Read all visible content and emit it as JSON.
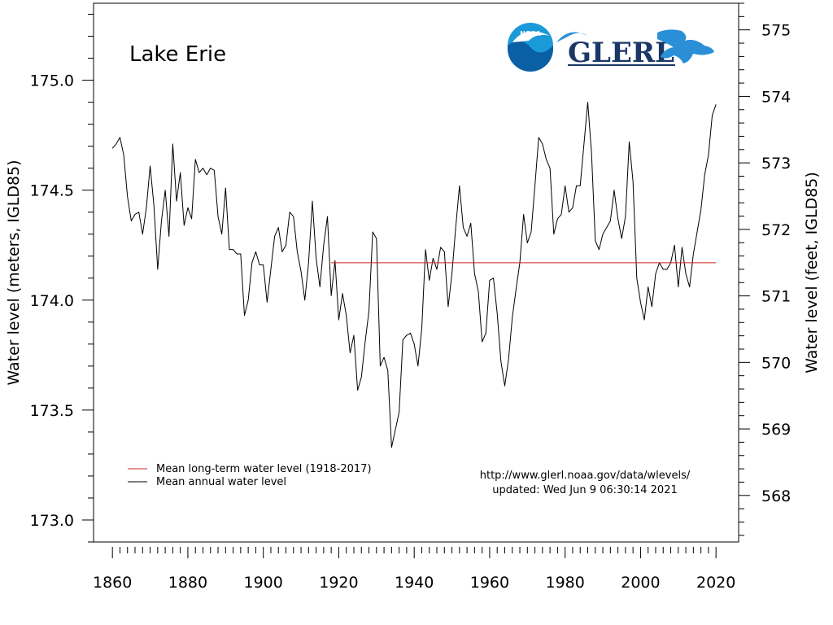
{
  "chart_data": {
    "type": "line",
    "title": "Lake Erie",
    "ylabel": "Water level (meters, IGLD85)",
    "ylabel_right": "Water level (feet, IGLD85)",
    "xlabel": "",
    "xlim": [
      1855,
      2026
    ],
    "ylim": [
      172.9,
      175.35
    ],
    "ylim_right_feet": [
      567.3,
      575.4
    ],
    "x_ticks": [
      "1860",
      "1880",
      "1900",
      "1920",
      "1940",
      "1960",
      "1980",
      "2000",
      "2020"
    ],
    "y_ticks": [
      "173.0",
      "173.5",
      "174.0",
      "174.5",
      "175.0"
    ],
    "y_ticks_right": [
      "568",
      "569",
      "570",
      "571",
      "572",
      "573",
      "574",
      "575"
    ],
    "legend": {
      "placement": "bottom-left",
      "entries": [
        {
          "label": "Mean long-term water level (1918-2017)",
          "color": "#cc2222"
        },
        {
          "label": "Mean annual water level",
          "color": "#000000"
        }
      ]
    },
    "annotations": [
      "http://www.glerl.noaa.gov/data/wlevels/",
      "updated: Wed Jun  9 06:30:14 2021"
    ],
    "logo_text": "GLERL",
    "logo_badge_text": "NOAA",
    "series": [
      {
        "name": "Mean annual water level",
        "color": "#000000",
        "x": [
          1860,
          1861,
          1862,
          1863,
          1864,
          1865,
          1866,
          1867,
          1868,
          1869,
          1870,
          1871,
          1872,
          1873,
          1874,
          1875,
          1876,
          1877,
          1878,
          1879,
          1880,
          1881,
          1882,
          1883,
          1884,
          1885,
          1886,
          1887,
          1888,
          1889,
          1890,
          1891,
          1892,
          1893,
          1894,
          1895,
          1896,
          1897,
          1898,
          1899,
          1900,
          1901,
          1902,
          1903,
          1904,
          1905,
          1906,
          1907,
          1908,
          1909,
          1910,
          1911,
          1912,
          1913,
          1914,
          1915,
          1916,
          1917,
          1918,
          1919,
          1920,
          1921,
          1922,
          1923,
          1924,
          1925,
          1926,
          1927,
          1928,
          1929,
          1930,
          1931,
          1932,
          1933,
          1934,
          1935,
          1936,
          1937,
          1938,
          1939,
          1940,
          1941,
          1942,
          1943,
          1944,
          1945,
          1946,
          1947,
          1948,
          1949,
          1950,
          1951,
          1952,
          1953,
          1954,
          1955,
          1956,
          1957,
          1958,
          1959,
          1960,
          1961,
          1962,
          1963,
          1964,
          1965,
          1966,
          1967,
          1968,
          1969,
          1970,
          1971,
          1972,
          1973,
          1974,
          1975,
          1976,
          1977,
          1978,
          1979,
          1980,
          1981,
          1982,
          1983,
          1984,
          1985,
          1986,
          1987,
          1988,
          1989,
          1990,
          1991,
          1992,
          1993,
          1994,
          1995,
          1996,
          1997,
          1998,
          1999,
          2000,
          2001,
          2002,
          2003,
          2004,
          2005,
          2006,
          2007,
          2008,
          2009,
          2010,
          2011,
          2012,
          2013,
          2014,
          2015,
          2016,
          2017,
          2018,
          2019,
          2020
        ],
        "values": [
          174.69,
          174.71,
          174.74,
          174.66,
          174.47,
          174.36,
          174.39,
          174.4,
          174.3,
          174.42,
          174.61,
          174.43,
          174.14,
          174.36,
          174.5,
          174.29,
          174.71,
          174.45,
          174.58,
          174.34,
          174.42,
          174.37,
          174.64,
          174.58,
          174.6,
          174.57,
          174.6,
          174.59,
          174.38,
          174.3,
          174.51,
          174.23,
          174.23,
          174.21,
          174.21,
          173.93,
          174.0,
          174.17,
          174.22,
          174.16,
          174.16,
          173.99,
          174.14,
          174.29,
          174.33,
          174.22,
          174.25,
          174.4,
          174.38,
          174.22,
          174.13,
          174.0,
          174.17,
          174.45,
          174.19,
          174.06,
          174.25,
          174.38,
          174.02,
          174.18,
          173.91,
          174.03,
          173.93,
          173.76,
          173.84,
          173.59,
          173.65,
          173.81,
          173.95,
          174.31,
          174.28,
          173.7,
          173.74,
          173.68,
          173.33,
          173.41,
          173.49,
          173.82,
          173.84,
          173.85,
          173.8,
          173.7,
          173.87,
          174.23,
          174.09,
          174.19,
          174.14,
          174.24,
          174.22,
          173.97,
          174.12,
          174.33,
          174.52,
          174.33,
          174.29,
          174.35,
          174.12,
          174.04,
          173.81,
          173.85,
          174.09,
          174.1,
          173.94,
          173.72,
          173.61,
          173.73,
          173.92,
          174.05,
          174.17,
          174.39,
          174.26,
          174.31,
          174.52,
          174.74,
          174.71,
          174.64,
          174.6,
          174.3,
          174.37,
          174.39,
          174.52,
          174.4,
          174.42,
          174.52,
          174.52,
          174.71,
          174.9,
          174.67,
          174.27,
          174.23,
          174.3,
          174.33,
          174.36,
          174.5,
          174.37,
          174.28,
          174.38,
          174.72,
          174.54,
          174.1,
          173.99,
          173.91,
          174.06,
          173.97,
          174.12,
          174.17,
          174.14,
          174.14,
          174.17,
          174.25,
          174.06,
          174.24,
          174.12,
          174.06,
          174.21,
          174.31,
          174.41,
          174.57,
          174.66,
          174.84,
          174.89
        ]
      },
      {
        "name": "Mean long-term water level (1918-2017)",
        "color": "#cc2222",
        "x": [
          1918,
          2020
        ],
        "values": [
          174.17,
          174.17
        ]
      }
    ]
  }
}
